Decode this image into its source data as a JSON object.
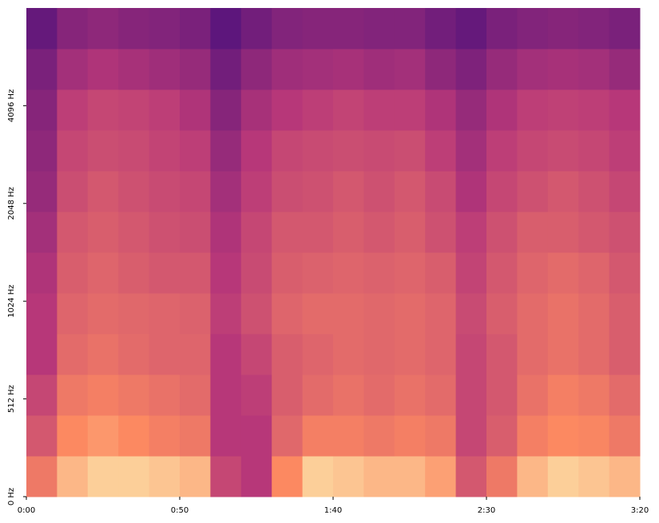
{
  "chart_data": {
    "type": "spectrogram",
    "colormap": "magma",
    "xlim": [
      0,
      200
    ],
    "xticks": [
      {
        "value": 0,
        "label": "0:00"
      },
      {
        "value": 50,
        "label": "0:50"
      },
      {
        "value": 100,
        "label": "1:40"
      },
      {
        "value": 150,
        "label": "2:30"
      },
      {
        "value": 200,
        "label": "3:20"
      }
    ],
    "ylim": [
      0,
      8192
    ],
    "yscale": "symlog",
    "linthresh": 512,
    "yticks": [
      {
        "value": 0,
        "label": "0 Hz"
      },
      {
        "value": 512,
        "label": "512 Hz"
      },
      {
        "value": 1024,
        "label": "1024 Hz"
      },
      {
        "value": 2048,
        "label": "2048 Hz"
      },
      {
        "value": 4096,
        "label": "4096 Hz"
      }
    ],
    "z": [
      [
        0.7,
        0.85,
        0.9,
        0.9,
        0.88,
        0.85,
        0.55,
        0.5,
        0.75,
        0.9,
        0.88,
        0.85,
        0.85,
        0.8,
        0.6,
        0.7,
        0.85,
        0.9,
        0.88,
        0.85
      ],
      [
        0.6,
        0.75,
        0.78,
        0.75,
        0.72,
        0.7,
        0.5,
        0.5,
        0.65,
        0.72,
        0.72,
        0.7,
        0.72,
        0.7,
        0.55,
        0.62,
        0.72,
        0.75,
        0.74,
        0.7
      ],
      [
        0.55,
        0.7,
        0.72,
        0.7,
        0.68,
        0.66,
        0.5,
        0.52,
        0.62,
        0.66,
        0.68,
        0.66,
        0.68,
        0.66,
        0.55,
        0.6,
        0.68,
        0.72,
        0.7,
        0.66
      ],
      [
        0.5,
        0.66,
        0.68,
        0.66,
        0.64,
        0.64,
        0.5,
        0.55,
        0.62,
        0.64,
        0.66,
        0.65,
        0.66,
        0.64,
        0.55,
        0.6,
        0.66,
        0.68,
        0.66,
        0.62
      ],
      [
        0.5,
        0.64,
        0.66,
        0.65,
        0.64,
        0.63,
        0.52,
        0.58,
        0.64,
        0.66,
        0.66,
        0.65,
        0.66,
        0.64,
        0.56,
        0.62,
        0.66,
        0.68,
        0.66,
        0.62
      ],
      [
        0.48,
        0.62,
        0.64,
        0.62,
        0.6,
        0.6,
        0.5,
        0.56,
        0.62,
        0.63,
        0.64,
        0.63,
        0.64,
        0.62,
        0.54,
        0.6,
        0.64,
        0.66,
        0.64,
        0.6
      ],
      [
        0.45,
        0.6,
        0.62,
        0.6,
        0.58,
        0.57,
        0.48,
        0.55,
        0.6,
        0.6,
        0.62,
        0.6,
        0.62,
        0.58,
        0.52,
        0.58,
        0.62,
        0.62,
        0.6,
        0.58
      ],
      [
        0.42,
        0.57,
        0.6,
        0.58,
        0.56,
        0.55,
        0.45,
        0.52,
        0.57,
        0.58,
        0.6,
        0.58,
        0.6,
        0.56,
        0.48,
        0.55,
        0.58,
        0.6,
        0.58,
        0.55
      ],
      [
        0.4,
        0.55,
        0.57,
        0.56,
        0.54,
        0.52,
        0.42,
        0.5,
        0.55,
        0.56,
        0.57,
        0.56,
        0.57,
        0.52,
        0.45,
        0.52,
        0.55,
        0.56,
        0.55,
        0.52
      ],
      [
        0.38,
        0.52,
        0.55,
        0.54,
        0.52,
        0.48,
        0.38,
        0.46,
        0.5,
        0.52,
        0.54,
        0.52,
        0.52,
        0.48,
        0.42,
        0.48,
        0.52,
        0.53,
        0.52,
        0.5
      ],
      [
        0.35,
        0.45,
        0.48,
        0.46,
        0.44,
        0.42,
        0.33,
        0.4,
        0.44,
        0.45,
        0.46,
        0.44,
        0.45,
        0.4,
        0.36,
        0.42,
        0.45,
        0.46,
        0.45,
        0.42
      ],
      [
        0.3,
        0.38,
        0.4,
        0.38,
        0.37,
        0.35,
        0.28,
        0.33,
        0.37,
        0.38,
        0.38,
        0.37,
        0.37,
        0.33,
        0.3,
        0.35,
        0.37,
        0.38,
        0.37,
        0.35
      ]
    ]
  }
}
